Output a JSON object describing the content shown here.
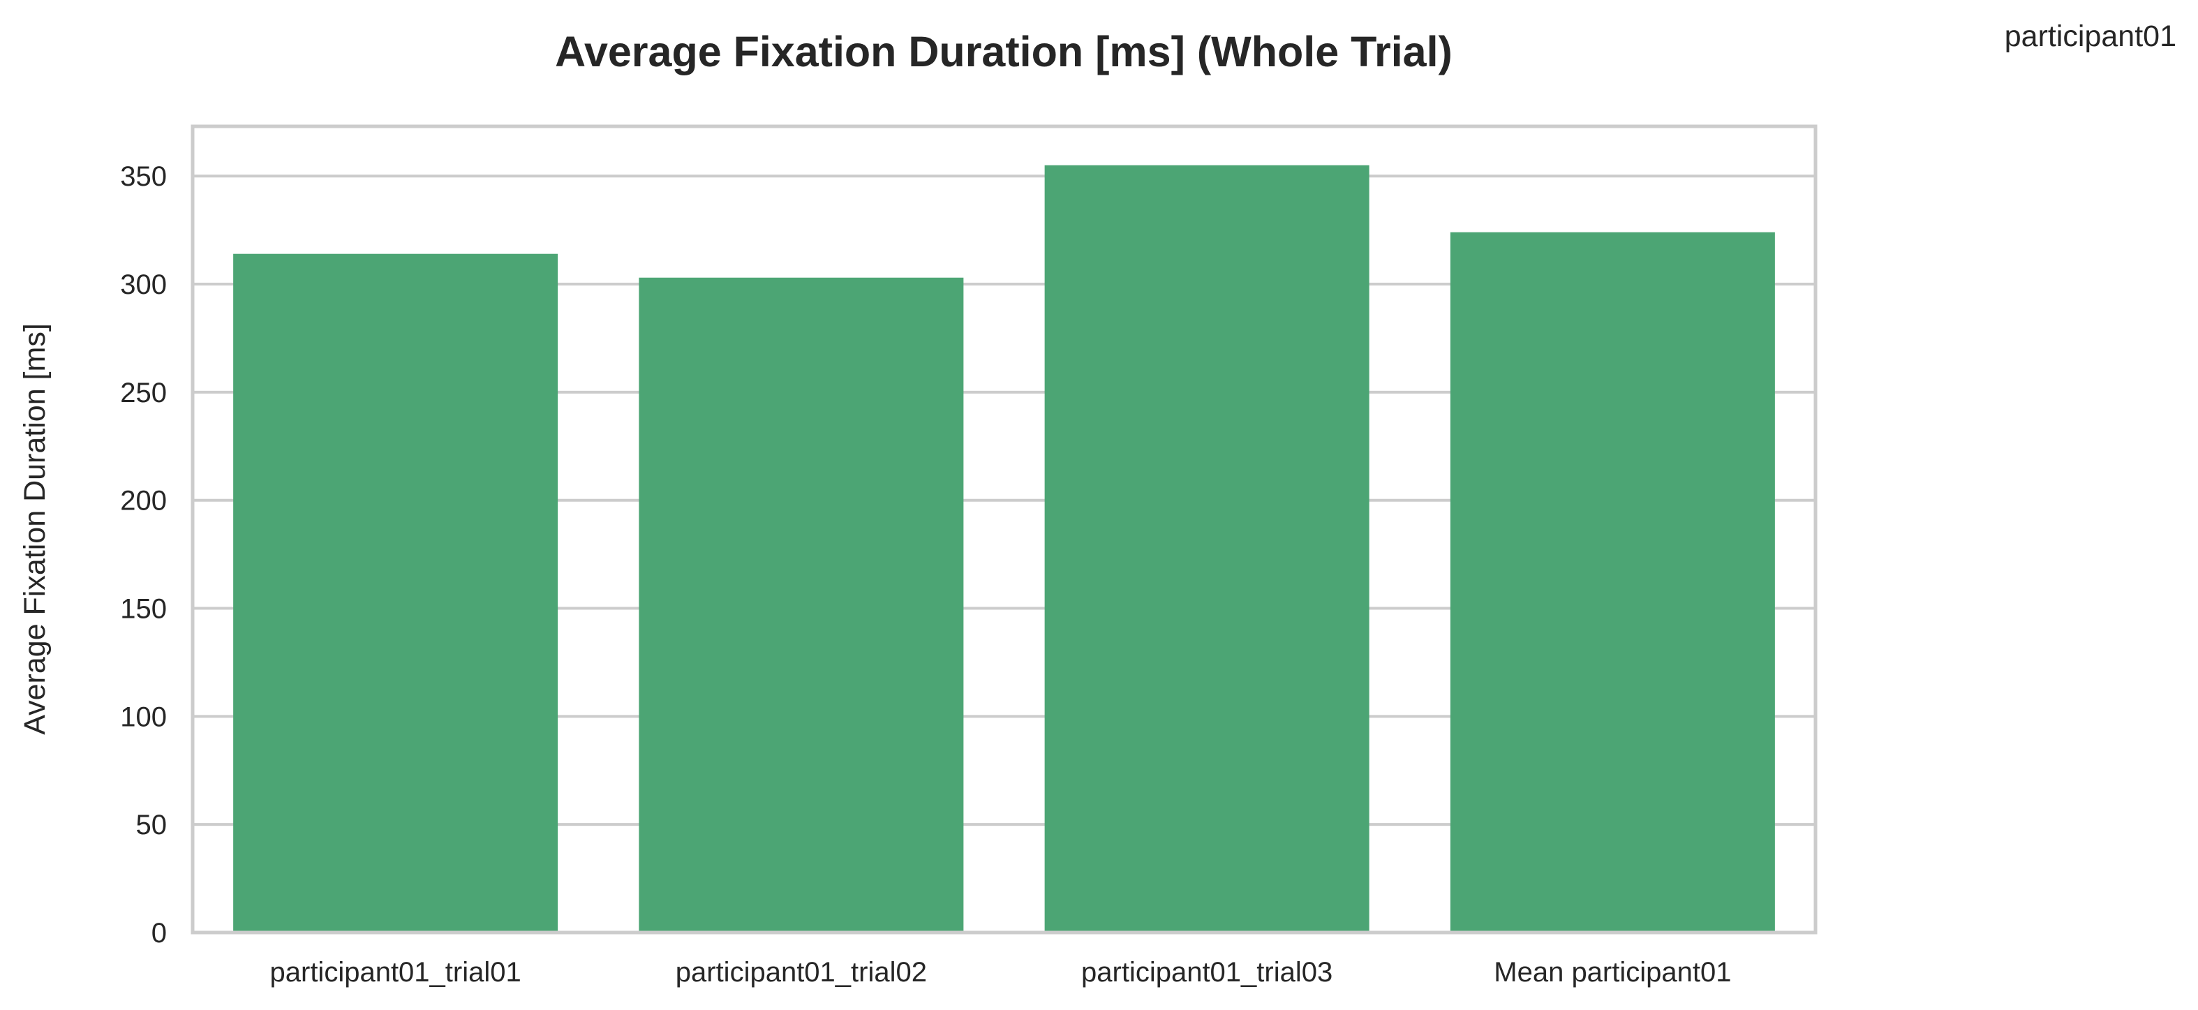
{
  "figure": {
    "corner_label": "participant01"
  },
  "chart_data": {
    "type": "bar",
    "title": "Average Fixation Duration [ms] (Whole Trial)",
    "xlabel": "",
    "ylabel": "Average Fixation Duration [ms]",
    "categories": [
      "participant01_trial01",
      "participant01_trial02",
      "participant01_trial03",
      "Mean participant01"
    ],
    "values": [
      314,
      303,
      355,
      324
    ],
    "ylim": [
      0,
      373
    ],
    "yticks": [
      0,
      50,
      100,
      150,
      200,
      250,
      300,
      350
    ],
    "grid": "horizontal",
    "bar_color": "#4ca574"
  }
}
